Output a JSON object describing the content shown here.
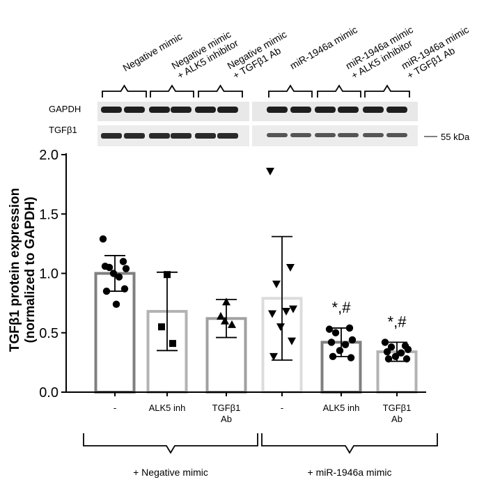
{
  "lane_labels": [
    [
      "Negative mimic"
    ],
    [
      "Negative mimic",
      "+ ALK5 inhibitor"
    ],
    [
      "Negative mimic",
      "+ TGFβ1 Ab"
    ],
    [
      "miR-1946a mimic"
    ],
    [
      "miR-1946a mimic",
      "+ ALK5 inhibitor"
    ],
    [
      "miR-1946a mimic",
      "+ TGFβ1 Ab"
    ]
  ],
  "blot": {
    "rows": [
      "GAPDH",
      "TGFβ1"
    ],
    "marker": "55 kDa"
  },
  "group_labels": [
    "+ Negative mimic",
    "+ miR-1946a mimic"
  ],
  "chart_data": {
    "type": "bar",
    "title": "",
    "xlabel": "",
    "ylabel": "TGFβ1 protein expression (normalized to GAPDH)",
    "ylabel_lines": [
      "TGFβ1 protein expression",
      "(normalized to GAPDH)"
    ],
    "ylim": [
      0,
      2.0
    ],
    "yticks": [
      0.0,
      0.5,
      1.0,
      1.5,
      2.0
    ],
    "ytick_labels": [
      "0.0",
      "0.5",
      "1.0",
      "1.5",
      "2.0"
    ],
    "categories": [
      "-",
      "ALK5 inh",
      "TGFβ1 Ab",
      "-",
      "ALK5 inh",
      "TGFβ1 Ab"
    ],
    "category_lines": [
      [
        "-"
      ],
      [
        "ALK5 inh"
      ],
      [
        "TGFβ1",
        "Ab"
      ],
      [
        "-"
      ],
      [
        "ALK5 inh"
      ],
      [
        "TGFβ1",
        "Ab"
      ]
    ],
    "groups": [
      {
        "name": "+ Negative mimic",
        "indices": [
          0,
          1,
          2
        ]
      },
      {
        "name": "+ miR-1946a mimic",
        "indices": [
          3,
          4,
          5
        ]
      }
    ],
    "series": [
      {
        "name": "Negative mimic",
        "mean": 1.0,
        "sd": 0.15,
        "marker": "circle",
        "edge_color": "#808080",
        "points": [
          1.29,
          1.1,
          1.05,
          1.04,
          1.06,
          0.97,
          1.0,
          0.87,
          0.85,
          0.74
        ]
      },
      {
        "name": "Negative mimic + ALK5 inhibitor",
        "mean": 0.68,
        "sd": 0.33,
        "marker": "square",
        "edge_color": "#b3b3b3",
        "points": [
          0.99,
          0.55,
          0.41
        ]
      },
      {
        "name": "Negative mimic + TGFβ1 Ab",
        "mean": 0.62,
        "sd": 0.16,
        "marker": "triangle-up",
        "edge_color": "#a0a0a0",
        "points": [
          0.76,
          0.64,
          0.57,
          0.6
        ]
      },
      {
        "name": "miR-1946a mimic",
        "mean": 0.79,
        "sd": 0.52,
        "marker": "triangle-down",
        "edge_color": "#dcdcdc",
        "points": [
          1.86,
          1.05,
          0.91,
          0.7,
          0.66,
          0.68,
          0.55,
          0.43,
          0.3
        ]
      },
      {
        "name": "miR-1946a mimic + ALK5 inhibitor",
        "mean": 0.42,
        "sd": 0.12,
        "marker": "circle",
        "edge_color": "#808080",
        "points": [
          0.53,
          0.54,
          0.5,
          0.44,
          0.42,
          0.4,
          0.35,
          0.29,
          0.3
        ],
        "annotation": "*,#"
      },
      {
        "name": "miR-1946a mimic + TGFβ1 Ab",
        "mean": 0.34,
        "sd": 0.08,
        "marker": "circle",
        "edge_color": "#b3b3b3",
        "points": [
          0.42,
          0.39,
          0.38,
          0.36,
          0.34,
          0.33,
          0.3,
          0.28,
          0.28
        ],
        "annotation": "*,#"
      }
    ]
  }
}
